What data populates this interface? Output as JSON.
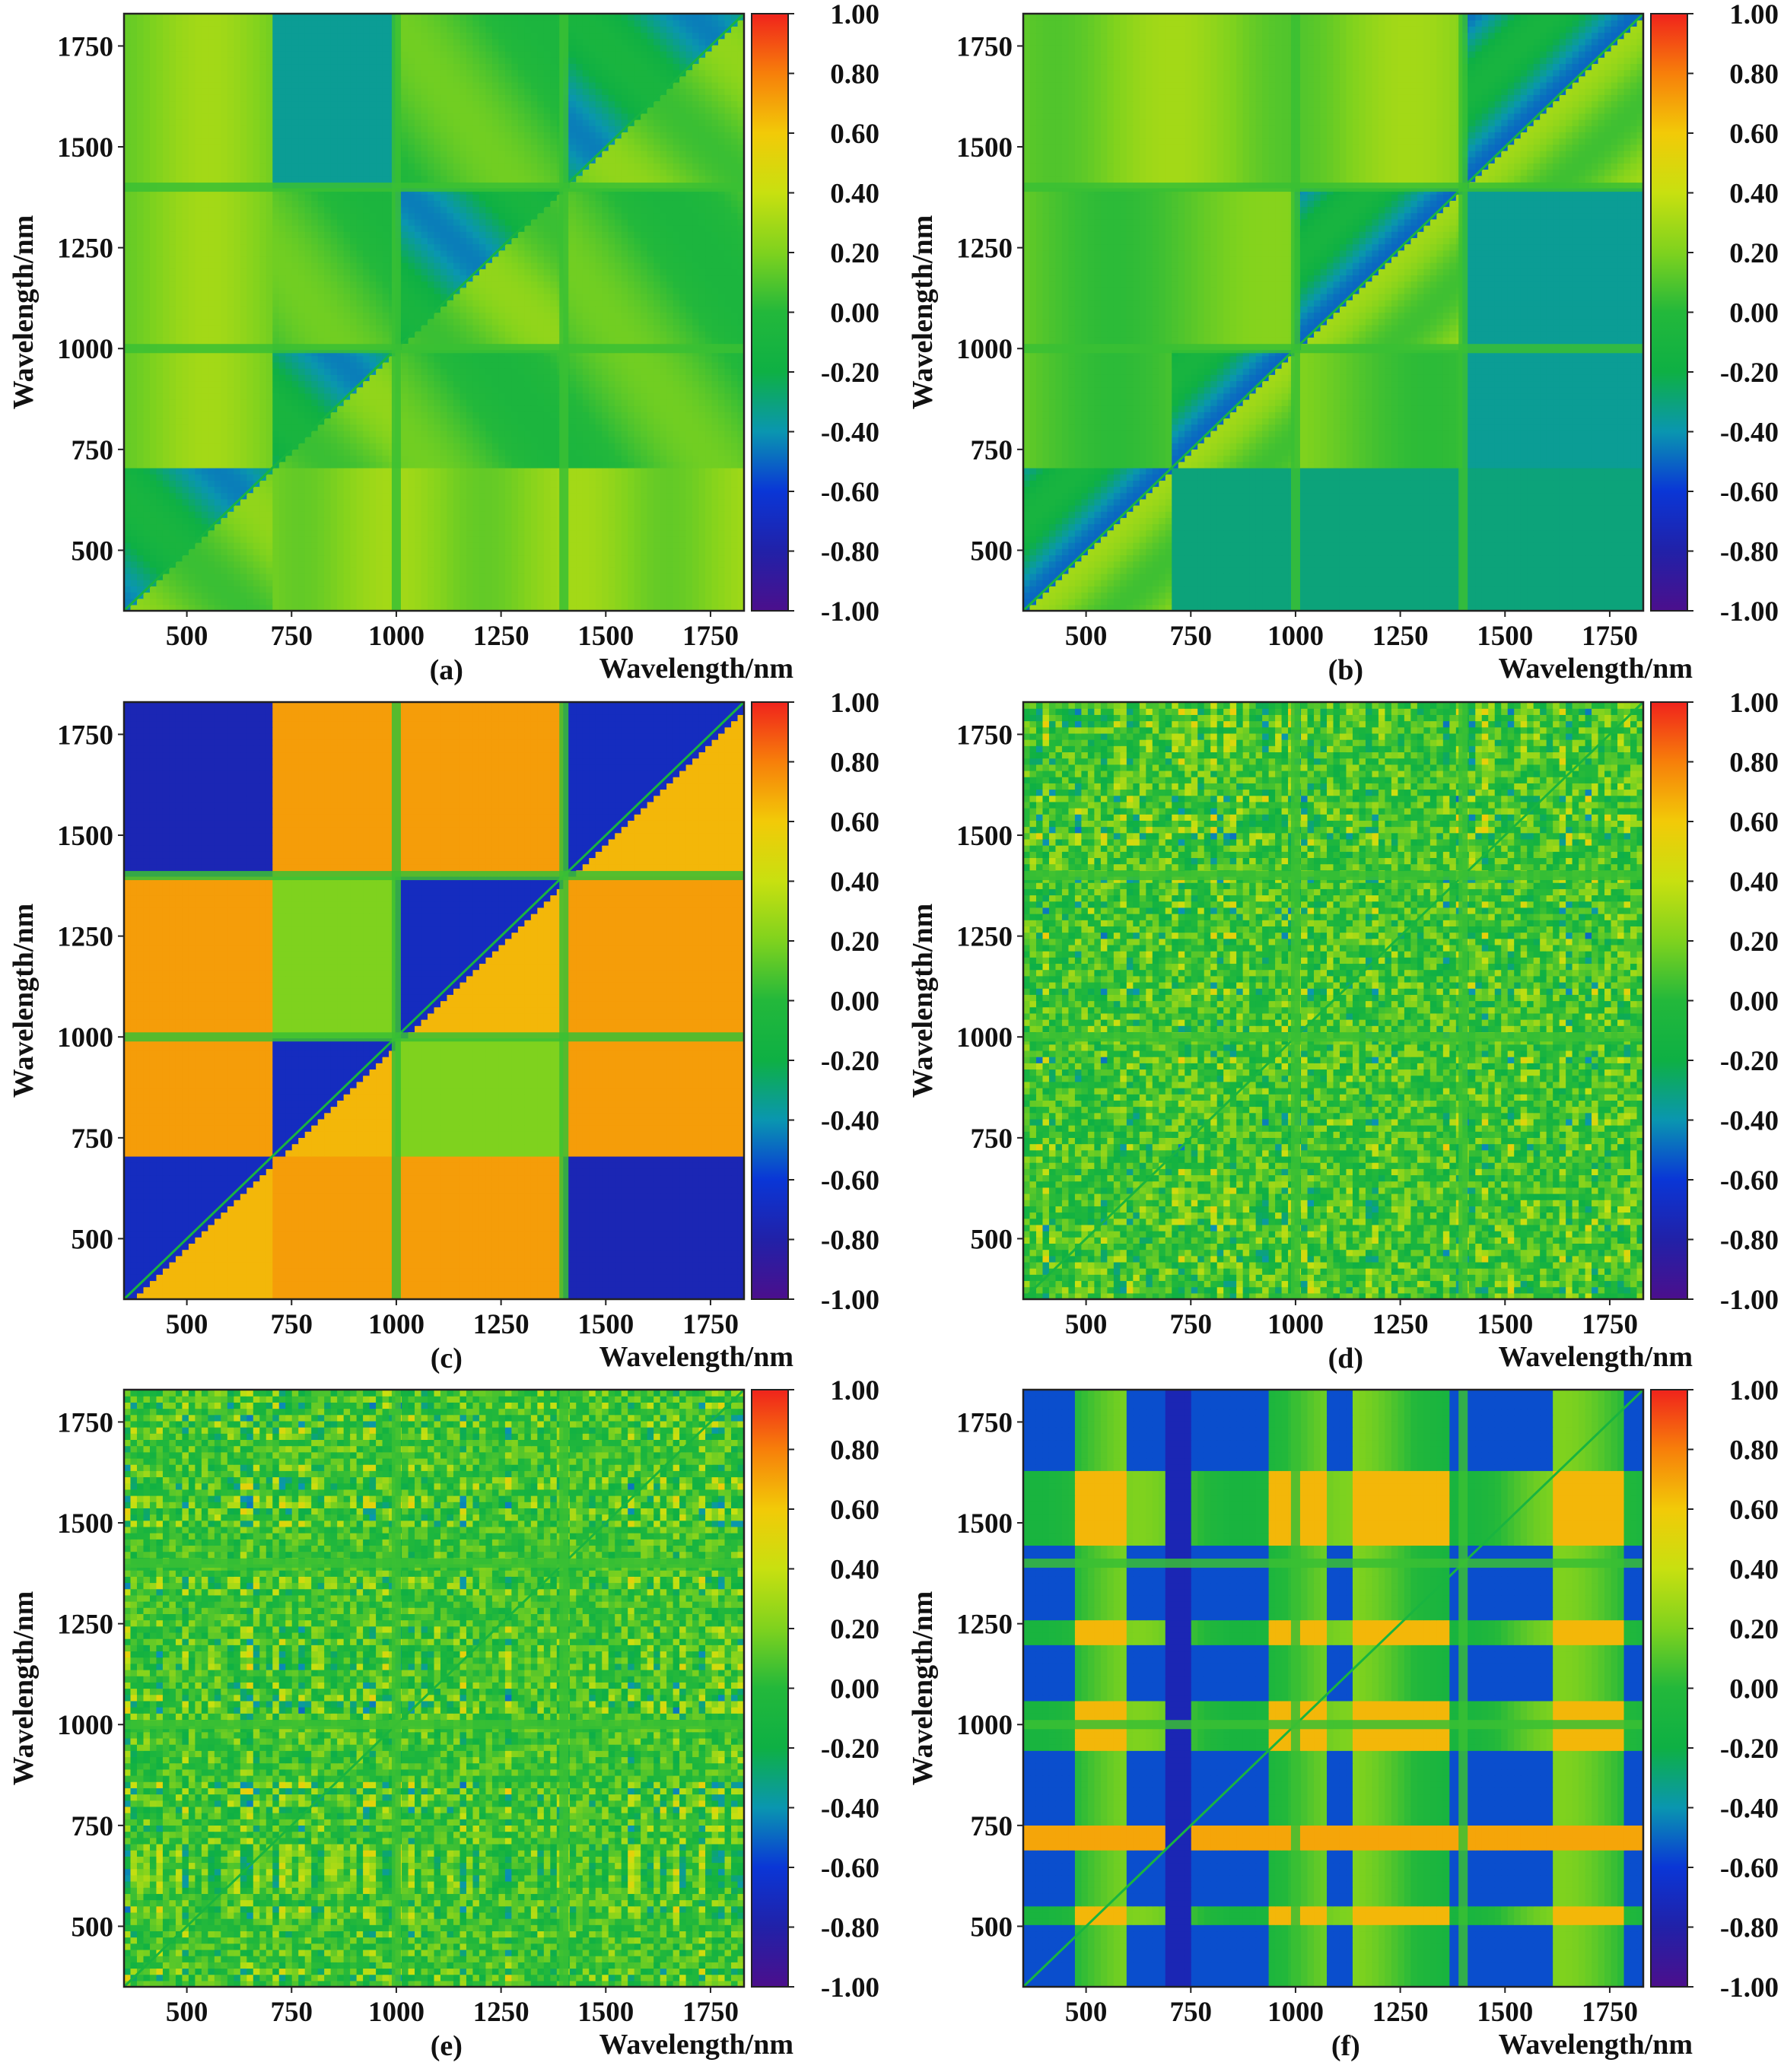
{
  "figure": {
    "panels": [
      {
        "id": "a",
        "label": "(a)",
        "pattern": "a",
        "xlabel": "Wavelength/nm",
        "ylabel": "Wavelength/nm"
      },
      {
        "id": "b",
        "label": "(b)",
        "pattern": "b",
        "xlabel": "Wavelength/nm",
        "ylabel": "Wavelength/nm"
      },
      {
        "id": "c",
        "label": "(c)",
        "pattern": "c",
        "xlabel": "Wavelength/nm",
        "ylabel": "Wavelength/nm"
      },
      {
        "id": "d",
        "label": "(d)",
        "pattern": "d",
        "xlabel": "Wavelength/nm",
        "ylabel": "Wavelength/nm"
      },
      {
        "id": "e",
        "label": "(e)",
        "pattern": "e",
        "xlabel": "Wavelength/nm",
        "ylabel": "Wavelength/nm"
      },
      {
        "id": "f",
        "label": "(f)",
        "pattern": "f",
        "xlabel": "Wavelength/nm",
        "ylabel": "Wavelength/nm"
      }
    ]
  },
  "chart_data": {
    "type": "heatmap",
    "layout": "3 rows x 2 columns",
    "title": "",
    "xlabel": "Wavelength/nm",
    "ylabel": "Wavelength/nm",
    "x_range": [
      350,
      1830
    ],
    "y_range": [
      350,
      1830
    ],
    "x_ticks": [
      500,
      750,
      1000,
      1250,
      1500,
      1750
    ],
    "y_ticks": [
      500,
      750,
      1000,
      1250,
      1500,
      1750
    ],
    "x_tick_labels": [
      "500",
      "750",
      "1000",
      "1250",
      "1500",
      "1750"
    ],
    "y_tick_labels": [
      "500",
      "750",
      "1000",
      "1250",
      "1500",
      "1750"
    ],
    "colorbar": {
      "range": [
        -1.0,
        1.0
      ],
      "ticks": [
        1.0,
        0.8,
        0.6,
        0.4,
        0.2,
        0.0,
        -0.2,
        -0.4,
        -0.6,
        -0.8,
        -1.0
      ],
      "tick_labels": [
        "1.00",
        "0.80",
        "0.60",
        "0.40",
        "0.20",
        "0.00",
        "-0.20",
        "-0.40",
        "-0.60",
        "-0.80",
        "-1.00"
      ],
      "colormap": [
        "#4b0f8c",
        "#2121a8",
        "#0a36d6",
        "#0a96b0",
        "#0eb044",
        "#23b83b",
        "#7fd21e",
        "#c8e010",
        "#f2ca08",
        "#f77f0a",
        "#f0231c"
      ]
    },
    "panels": [
      {
        "label": "(a)",
        "value_range_estimate": [
          -0.6,
          0.4
        ]
      },
      {
        "label": "(b)",
        "value_range_estimate": [
          -0.6,
          0.4
        ]
      },
      {
        "label": "(c)",
        "value_range_estimate": [
          -0.8,
          0.8
        ]
      },
      {
        "label": "(d)",
        "value_range_estimate": [
          -0.6,
          0.4
        ]
      },
      {
        "label": "(e)",
        "value_range_estimate": [
          -0.6,
          0.4
        ]
      },
      {
        "label": "(f)",
        "value_range_estimate": [
          -0.7,
          0.7
        ]
      }
    ]
  }
}
